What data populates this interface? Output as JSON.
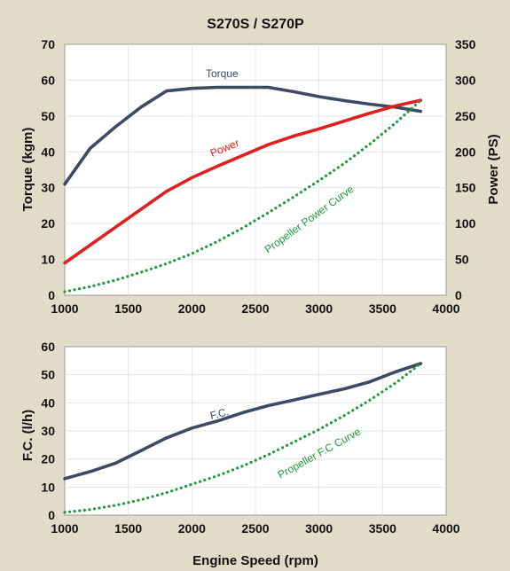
{
  "chart_data": [
    {
      "type": "line",
      "title": "S270S / S270P",
      "xlabel": "",
      "ylabel": "Torque (kgm)",
      "y2label": "Power (PS)",
      "xlim": [
        1000,
        4000
      ],
      "ylim": [
        0,
        70
      ],
      "y2lim": [
        0,
        350
      ],
      "xticks": [
        1000,
        1500,
        2000,
        2500,
        3000,
        3500,
        4000
      ],
      "yticks": [
        0,
        10,
        20,
        30,
        40,
        50,
        60,
        70
      ],
      "y2ticks": [
        0,
        50,
        100,
        150,
        200,
        250,
        300,
        350
      ],
      "grid": true,
      "series": [
        {
          "name": "Torque",
          "axis": "left",
          "color": "#3d4a63",
          "style": "solid",
          "x": [
            1000,
            1200,
            1400,
            1600,
            1800,
            2000,
            2200,
            2400,
            2600,
            2800,
            3000,
            3200,
            3400,
            3600,
            3800
          ],
          "y": [
            31,
            41,
            47,
            52.5,
            57,
            57.7,
            58,
            58,
            58,
            56.8,
            55.4,
            54.3,
            53.3,
            52.5,
            51.3
          ]
        },
        {
          "name": "Power",
          "axis": "right",
          "color": "#e02020",
          "style": "solid",
          "x": [
            1000,
            1200,
            1400,
            1600,
            1800,
            2000,
            2200,
            2400,
            2600,
            2800,
            3000,
            3200,
            3400,
            3600,
            3800
          ],
          "y": [
            45,
            70,
            95,
            120,
            145,
            164,
            180,
            195,
            210,
            222,
            232,
            243,
            254,
            264,
            272
          ]
        },
        {
          "name": "Propeller Power Curve",
          "axis": "right",
          "color": "#1f9a3c",
          "style": "dotted",
          "x": [
            1000,
            1200,
            1400,
            1600,
            1800,
            2000,
            2200,
            2400,
            2600,
            2800,
            3000,
            3200,
            3400,
            3600,
            3800
          ],
          "y": [
            5,
            12,
            21,
            32,
            44,
            58,
            75,
            94,
            115,
            137,
            160,
            184,
            211,
            240,
            272
          ]
        }
      ]
    },
    {
      "type": "line",
      "title": "",
      "xlabel": "Engine Speed (rpm)",
      "ylabel": "F.C. (l/h)",
      "xlim": [
        1000,
        4000
      ],
      "ylim": [
        0,
        60
      ],
      "xticks": [
        1000,
        1500,
        2000,
        2500,
        3000,
        3500,
        4000
      ],
      "yticks": [
        0,
        10,
        20,
        30,
        40,
        50,
        60
      ],
      "grid": true,
      "series": [
        {
          "name": "F.C.",
          "axis": "left",
          "color": "#3d4a63",
          "style": "solid",
          "x": [
            1000,
            1200,
            1400,
            1600,
            1800,
            2000,
            2200,
            2400,
            2600,
            2800,
            3000,
            3200,
            3400,
            3600,
            3800
          ],
          "y": [
            13,
            15.5,
            18.5,
            23,
            27.5,
            31,
            33.5,
            36.5,
            39,
            41,
            43,
            45,
            47.5,
            51,
            54
          ]
        },
        {
          "name": "Propeller F.C Curve",
          "axis": "left",
          "color": "#1f9a3c",
          "style": "dotted",
          "x": [
            1000,
            1200,
            1400,
            1600,
            1800,
            2000,
            2200,
            2400,
            2600,
            2800,
            3000,
            3200,
            3400,
            3600,
            3800
          ],
          "y": [
            1,
            2,
            3.5,
            5.5,
            8,
            11,
            14,
            17.5,
            21.5,
            26,
            30.5,
            35.5,
            41,
            47,
            54
          ]
        }
      ]
    }
  ]
}
